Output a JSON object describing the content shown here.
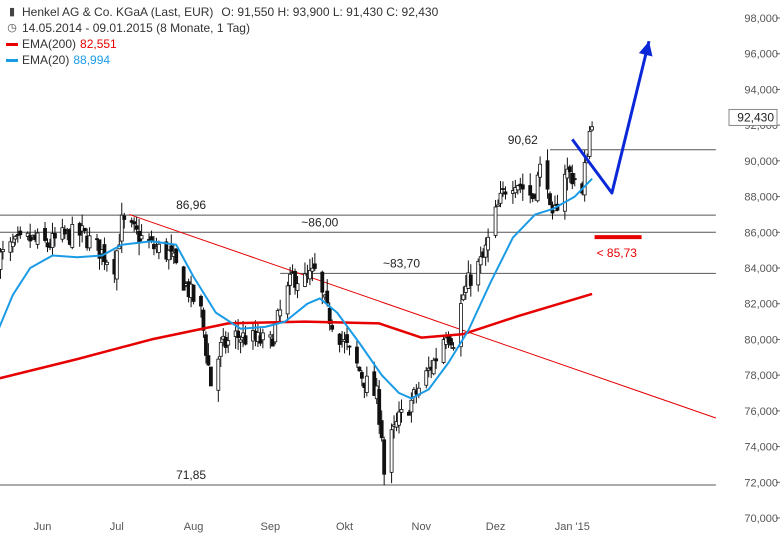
{
  "header": {
    "title": "Henkel AG & Co. KGaA (Last, EUR)",
    "ohlc": "O: 91,550  H: 93,900  L: 91,430  C: 92,430",
    "range": "14.05.2014 - 09.01.2015 (8 Monate, 1 Tag)",
    "ema200_label": "EMA(200)",
    "ema200_value": "82,551",
    "ema20_label": "EMA(20)",
    "ema20_value": "88,994"
  },
  "icons": {
    "chart_type": "candlestick-icon",
    "range": "clock-icon"
  },
  "colors": {
    "ema200": "#e60000",
    "ema20": "#1a9be6",
    "trend": "#e60000",
    "arrow": "#0a28d8",
    "candle": "#111111",
    "hline": "#555555"
  },
  "chart_data": {
    "type": "candlestick",
    "x_range": [
      "2014-05-14",
      "2015-01-09"
    ],
    "ylim": [
      70,
      98
    ],
    "yticks": [
      "70,000",
      "72,000",
      "74,000",
      "76,000",
      "78,000",
      "80,000",
      "82,000",
      "84,000",
      "86,000",
      "88,000",
      "90,000",
      "92,000",
      "94,000",
      "96,000",
      "98,000"
    ],
    "x_tick_labels": [
      {
        "date": "2014-06-01",
        "label": "Jun"
      },
      {
        "date": "2014-07-01",
        "label": "Jul"
      },
      {
        "date": "2014-08-01",
        "label": "Aug"
      },
      {
        "date": "2014-09-01",
        "label": "Sep"
      },
      {
        "date": "2014-10-01",
        "label": "Okt"
      },
      {
        "date": "2014-11-01",
        "label": "Nov"
      },
      {
        "date": "2014-12-01",
        "label": "Dez"
      },
      {
        "date": "2015-01-01",
        "label": "Jan '15"
      }
    ],
    "last_price": {
      "value": 92.43,
      "label": "92,430"
    },
    "grid": false,
    "price_path": [
      [
        "2014-05-14",
        84.5
      ],
      [
        "2014-05-20",
        85.2
      ],
      [
        "2014-05-27",
        85.6
      ],
      [
        "2014-06-03",
        85.3
      ],
      [
        "2014-06-10",
        85.8
      ],
      [
        "2014-06-17",
        85.9
      ],
      [
        "2014-06-24",
        85.0
      ],
      [
        "2014-06-30",
        84.2
      ],
      [
        "2014-07-03",
        86.5
      ],
      [
        "2014-07-08",
        86.0
      ],
      [
        "2014-07-15",
        85.2
      ],
      [
        "2014-07-22",
        84.8
      ],
      [
        "2014-07-29",
        83.0
      ],
      [
        "2014-08-04",
        81.5
      ],
      [
        "2014-08-08",
        77.5
      ],
      [
        "2014-08-12",
        79.5
      ],
      [
        "2014-08-18",
        80.2
      ],
      [
        "2014-08-25",
        80.0
      ],
      [
        "2014-09-01",
        79.8
      ],
      [
        "2014-09-05",
        81.5
      ],
      [
        "2014-09-10",
        83.5
      ],
      [
        "2014-09-15",
        83.3
      ],
      [
        "2014-09-19",
        83.7
      ],
      [
        "2014-09-24",
        81.5
      ],
      [
        "2014-09-30",
        80.0
      ],
      [
        "2014-10-06",
        78.5
      ],
      [
        "2014-10-10",
        77.5
      ],
      [
        "2014-10-14",
        76.8
      ],
      [
        "2014-10-16",
        74.8
      ],
      [
        "2014-10-17",
        72.5
      ],
      [
        "2014-10-20",
        74.5
      ],
      [
        "2014-10-23",
        75.5
      ],
      [
        "2014-10-28",
        76.5
      ],
      [
        "2014-11-03",
        78.0
      ],
      [
        "2014-11-07",
        79.0
      ],
      [
        "2014-11-11",
        80.5
      ],
      [
        "2014-11-14",
        80.0
      ],
      [
        "2014-11-18",
        82.5
      ],
      [
        "2014-11-21",
        83.5
      ],
      [
        "2014-11-26",
        84.5
      ],
      [
        "2014-12-01",
        87.0
      ],
      [
        "2014-12-05",
        88.5
      ],
      [
        "2014-12-09",
        89.0
      ],
      [
        "2014-12-12",
        88.5
      ],
      [
        "2014-12-16",
        88.0
      ],
      [
        "2014-12-19",
        89.5
      ],
      [
        "2014-12-22",
        89.0
      ],
      [
        "2014-12-23",
        87.0
      ],
      [
        "2014-12-24",
        86.5
      ],
      [
        "2014-12-29",
        89.5
      ],
      [
        "2015-01-02",
        89.0
      ],
      [
        "2015-01-05",
        88.0
      ],
      [
        "2015-01-06",
        89.5
      ],
      [
        "2015-01-07",
        90.5
      ],
      [
        "2015-01-08",
        91.6
      ],
      [
        "2015-01-09",
        92.43
      ]
    ],
    "ema200": [
      [
        "2014-05-14",
        77.8
      ],
      [
        "2014-06-15",
        78.9
      ],
      [
        "2014-07-15",
        80.0
      ],
      [
        "2014-08-15",
        80.9
      ],
      [
        "2014-09-15",
        81.0
      ],
      [
        "2014-10-15",
        80.9
      ],
      [
        "2014-11-01",
        80.1
      ],
      [
        "2014-11-18",
        80.3
      ],
      [
        "2014-12-10",
        81.3
      ],
      [
        "2015-01-09",
        82.55
      ]
    ],
    "ema20": [
      [
        "2014-05-14",
        80.5
      ],
      [
        "2014-05-20",
        82.5
      ],
      [
        "2014-05-27",
        84.0
      ],
      [
        "2014-06-05",
        84.7
      ],
      [
        "2014-06-15",
        84.6
      ],
      [
        "2014-06-25",
        84.7
      ],
      [
        "2014-07-03",
        85.3
      ],
      [
        "2014-07-15",
        85.5
      ],
      [
        "2014-07-25",
        85.3
      ],
      [
        "2014-08-01",
        83.5
      ],
      [
        "2014-08-10",
        81.5
      ],
      [
        "2014-08-20",
        80.6
      ],
      [
        "2014-08-30",
        80.7
      ],
      [
        "2014-09-07",
        81.0
      ],
      [
        "2014-09-16",
        82.0
      ],
      [
        "2014-09-21",
        82.3
      ],
      [
        "2014-09-28",
        81.5
      ],
      [
        "2014-10-07",
        79.8
      ],
      [
        "2014-10-16",
        78.0
      ],
      [
        "2014-10-23",
        77.0
      ],
      [
        "2014-10-28",
        76.7
      ],
      [
        "2014-11-04",
        77.2
      ],
      [
        "2014-11-12",
        78.7
      ],
      [
        "2014-11-20",
        80.5
      ],
      [
        "2014-11-29",
        83.2
      ],
      [
        "2014-12-08",
        85.7
      ],
      [
        "2014-12-17",
        87.0
      ],
      [
        "2014-12-24",
        87.3
      ],
      [
        "2015-01-02",
        88.0
      ],
      [
        "2015-01-09",
        89.0
      ]
    ],
    "trendline": {
      "from": [
        "2014-07-06",
        87.0
      ],
      "to": [
        "2015-02-28",
        75.6
      ]
    },
    "levels": [
      {
        "y": 86.96,
        "label": "86,96",
        "from": "2014-05-14",
        "to": "2015-02-28",
        "label_at": "2014-07-31"
      },
      {
        "y": 86.0,
        "label": "~86,00",
        "from": "2014-05-14",
        "to": "2015-02-28",
        "label_at": "2014-09-21"
      },
      {
        "y": 83.7,
        "label": "~83,70",
        "from": "2014-09-05",
        "to": "2015-02-28",
        "label_at": "2014-10-24"
      },
      {
        "y": 90.62,
        "label": "90,62",
        "from": "2014-12-23",
        "to": "2015-02-28",
        "label_at": "2014-12-12"
      },
      {
        "y": 71.85,
        "label": "71,85",
        "from": "2014-05-14",
        "to": "2015-02-28",
        "label_at": "2014-07-31"
      }
    ],
    "support_marker": {
      "y": 85.73,
      "label": "< 85,73",
      "from": "2015-01-10",
      "to": "2015-01-29"
    },
    "forecast_arrow": [
      [
        "2015-01-01",
        91.2
      ],
      [
        "2015-01-17",
        88.2
      ],
      [
        "2015-02-01",
        96.7
      ]
    ]
  }
}
